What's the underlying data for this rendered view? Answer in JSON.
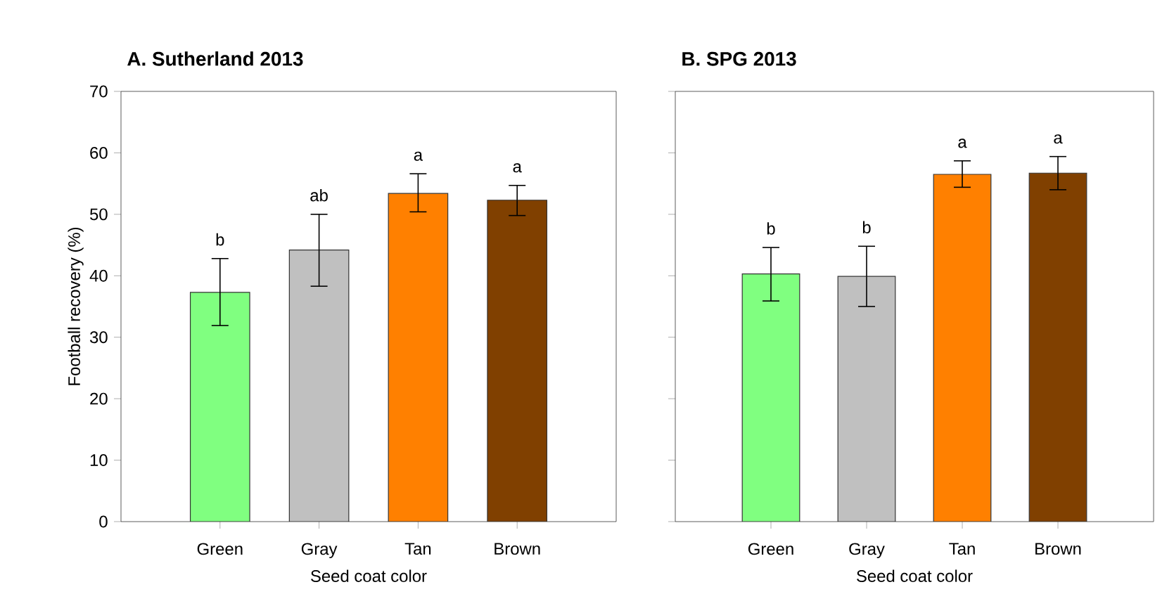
{
  "chart_data": [
    {
      "type": "bar",
      "title": "A. Sutherland 2013",
      "xlabel": "Seed coat color",
      "ylabel": "Football recovery (%)",
      "categories": [
        "Green",
        "Gray",
        "Tan",
        "Brown"
      ],
      "values": [
        37.3,
        44.2,
        53.4,
        52.3
      ],
      "colors": [
        "#80ff80",
        "#c0c0c0",
        "#ff8000",
        "#804000"
      ],
      "errors": [
        [
          31.9,
          42.8
        ],
        [
          38.3,
          50.0
        ],
        [
          50.4,
          56.6
        ],
        [
          49.8,
          54.7
        ]
      ],
      "ylim": [
        0,
        70
      ],
      "yticks": [
        0,
        10,
        20,
        30,
        40,
        50,
        60,
        70
      ],
      "annotations": [
        {
          "text": "b",
          "x": "Green",
          "y": 42.8
        },
        {
          "text": "ab",
          "x": "Gray",
          "y": 50.0
        },
        {
          "text": "a",
          "x": "Tan",
          "y": 56.6
        },
        {
          "text": "a",
          "x": "Brown",
          "y": 54.7
        }
      ]
    },
    {
      "type": "bar",
      "title": "B. SPG 2013",
      "xlabel": "Seed coat color",
      "categories": [
        "Green",
        "Gray",
        "Tan",
        "Brown"
      ],
      "values": [
        40.3,
        39.9,
        56.5,
        56.7
      ],
      "colors": [
        "#80ff80",
        "#c0c0c0",
        "#ff8000",
        "#804000"
      ],
      "errors": [
        [
          35.9,
          44.6
        ],
        [
          35.0,
          44.8
        ],
        [
          54.4,
          58.7
        ],
        [
          54.0,
          59.4
        ]
      ],
      "ylim": [
        0,
        70
      ],
      "yticks": [
        0,
        10,
        20,
        30,
        40,
        50,
        60,
        70
      ],
      "tick_labels": "x",
      "annotations": [
        {
          "text": "b",
          "x": "Green",
          "y": 44.6
        },
        {
          "text": "b",
          "x": "Gray",
          "y": 44.8
        },
        {
          "text": "a",
          "x": "Tan",
          "y": 58.7
        },
        {
          "text": "a",
          "x": "Brown",
          "y": 59.4
        }
      ]
    }
  ]
}
